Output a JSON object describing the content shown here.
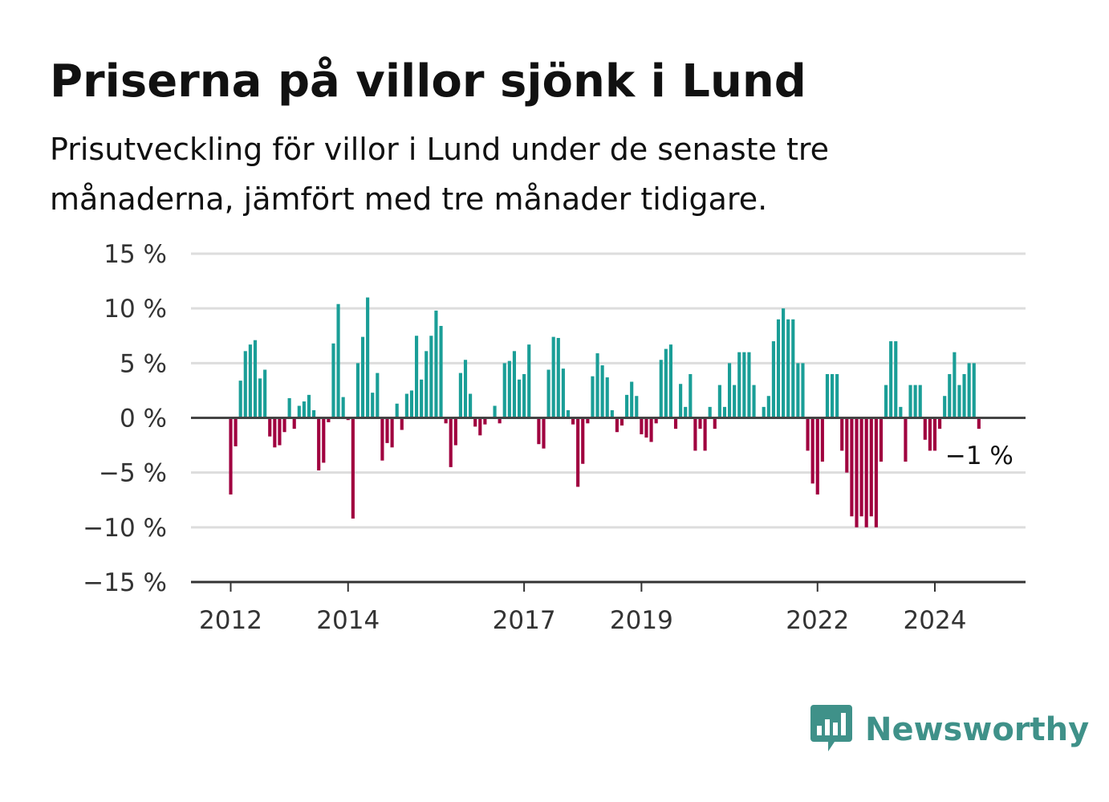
{
  "title": "Priserna på villor sjönk i Lund",
  "subtitle": "Prisutveckling för villor i Lund under de senaste tre månaderna, jämfört med tre månader tidigare.",
  "brand": {
    "name": "Newsworthy",
    "icon": "bar-chart-speech-bubble-icon",
    "color": "#3f9189"
  },
  "chart_data": {
    "type": "bar",
    "title": "Priserna på villor sjönk i Lund",
    "subtitle": "Prisutveckling för villor i Lund under de senaste tre månaderna, jämfört med tre månader tidigare.",
    "xlabel": "",
    "ylabel": "",
    "ylim": [
      -15,
      15
    ],
    "yticks": [
      15,
      10,
      5,
      0,
      -5,
      -10,
      -15
    ],
    "ytick_labels": [
      "15 %",
      "10 %",
      "5 %",
      "0 %",
      "−5 %",
      "−10 %",
      "−15 %"
    ],
    "xticks": [
      {
        "label": "2012",
        "date": "2012-01"
      },
      {
        "label": "2014",
        "date": "2014-01"
      },
      {
        "label": "2017",
        "date": "2017-01"
      },
      {
        "label": "2019",
        "date": "2019-01"
      },
      {
        "label": "2022",
        "date": "2022-01"
      },
      {
        "label": "2024",
        "date": "2024-01"
      }
    ],
    "grid": true,
    "colors": {
      "positive": "#1a9e97",
      "negative": "#a0003f"
    },
    "last_value_label": "−1 %",
    "start_month": "2012-01",
    "values": [
      -7,
      -2.6,
      3.4,
      6.1,
      6.7,
      7.1,
      3.6,
      4.4,
      -1.7,
      -2.7,
      -2.5,
      -1.3,
      1.8,
      -1,
      1.1,
      1.5,
      2.1,
      0.7,
      -4.8,
      -4.1,
      -0.4,
      6.8,
      10.4,
      1.9,
      -0.2,
      -9.2,
      5,
      7.4,
      11,
      2.3,
      4.1,
      -3.9,
      -2.3,
      -2.7,
      1.3,
      -1.1,
      2.2,
      2.5,
      7.5,
      3.5,
      6.1,
      7.5,
      9.8,
      8.4,
      -0.5,
      -4.5,
      -2.5,
      4.1,
      5.3,
      2.2,
      -0.8,
      -1.6,
      -0.6,
      -0.1,
      1.1,
      -0.5,
      5,
      5.2,
      6.1,
      3.5,
      4,
      6.7,
      -0.1,
      -2.4,
      -2.8,
      4.4,
      7.4,
      7.3,
      4.5,
      0.7,
      -0.6,
      -6.3,
      -4.2,
      -0.5,
      3.8,
      5.9,
      4.8,
      3.7,
      0.7,
      -1.3,
      -0.7,
      2.1,
      3.3,
      2,
      -1.5,
      -1.8,
      -2.2,
      -0.5,
      5.3,
      6.3,
      6.7,
      -1,
      3.1,
      1,
      4,
      -3,
      -1,
      -3,
      1,
      -1,
      3,
      1,
      5,
      3,
      6,
      6,
      6,
      3,
      0,
      1,
      2,
      7,
      9,
      10,
      9,
      9,
      5,
      5,
      -3,
      -6,
      -7,
      -4,
      4,
      4,
      4,
      -3,
      -5,
      -9,
      -10,
      -9,
      -10,
      -9,
      -10,
      -4,
      3,
      7,
      7,
      1,
      -4,
      3,
      3,
      3,
      -2,
      -3,
      -3,
      -1,
      2,
      4,
      6,
      3,
      4,
      5,
      5,
      -1
    ]
  }
}
